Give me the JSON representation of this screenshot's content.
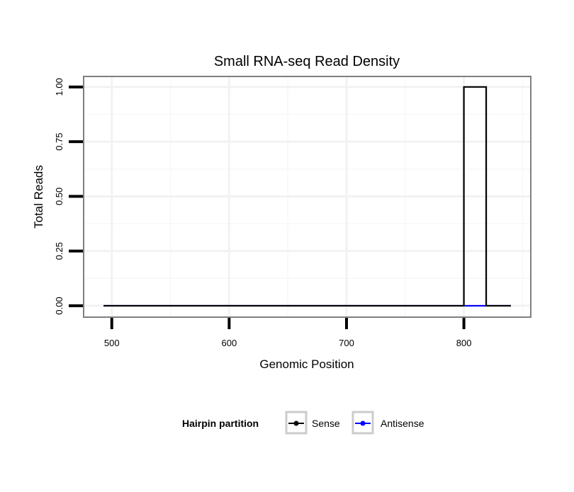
{
  "chart_data": {
    "type": "line",
    "title": "Small RNA-seq Read Density",
    "xlabel": "Genomic Position",
    "ylabel": "Total Reads",
    "xlim": [
      476,
      857
    ],
    "ylim": [
      -0.052,
      1.048
    ],
    "xticks": [
      500,
      600,
      700,
      800
    ],
    "xtick_labels": [
      "500",
      "600",
      "700",
      "800"
    ],
    "yticks": [
      0,
      0.25,
      0.5,
      0.75,
      1.0
    ],
    "ytick_labels": [
      "0.00",
      "0.25",
      "0.50",
      "0.75",
      "1.00"
    ],
    "x_minor": [
      550,
      650,
      750,
      850
    ],
    "y_minor": [
      0.125,
      0.375,
      0.625,
      0.875
    ],
    "grid": true,
    "legend": {
      "title": "Hairpin partition",
      "placement": "bottom"
    },
    "series": [
      {
        "name": "Antisense",
        "color": "#0000ff",
        "x": [
          493,
          840
        ],
        "y": [
          0,
          0
        ]
      },
      {
        "name": "Sense",
        "color": "#000000",
        "x": [
          493,
          800,
          800,
          819,
          819,
          840
        ],
        "y": [
          0,
          0,
          1,
          1,
          0,
          0
        ]
      }
    ]
  }
}
